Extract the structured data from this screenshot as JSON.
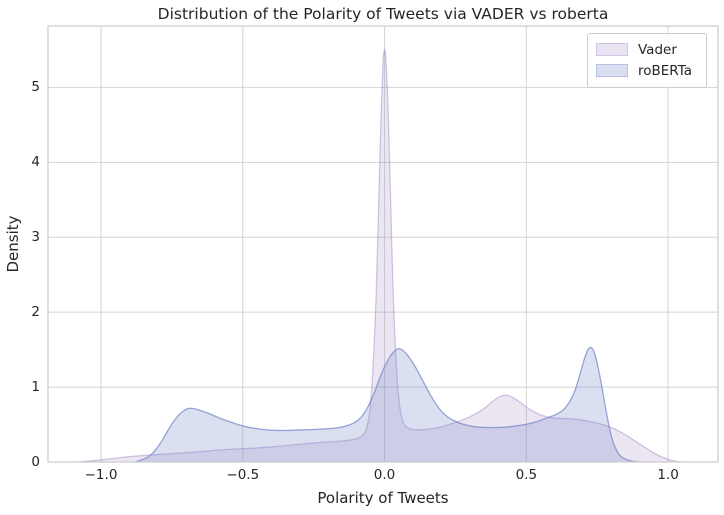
{
  "window": {
    "title": "Distribution of the Polarity of Tweets via VADER vs roberta"
  },
  "chart_data": {
    "type": "area",
    "subtype": "kde-density",
    "title": "Distribution of the Polarity of Tweets via VADER vs roberta",
    "xlabel": "Polarity of Tweets",
    "ylabel": "Density",
    "xlim": [
      -1.187,
      1.176
    ],
    "ylim": [
      0,
      5.82
    ],
    "grid": true,
    "x_ticks": {
      "values": [
        -1.0,
        -0.5,
        0.0,
        0.5,
        1.0
      ],
      "labels": [
        "−1.0",
        "−0.5",
        "0.0",
        "0.5",
        "1.0"
      ]
    },
    "y_ticks": {
      "values": [
        0,
        1,
        2,
        3,
        4,
        5
      ],
      "labels": [
        "0",
        "1",
        "2",
        "3",
        "4",
        "5"
      ]
    },
    "legend": {
      "position": "upper right",
      "entries": [
        {
          "label": "Vader",
          "swatch_fill": "#e9e3f2",
          "swatch_border": "#cfc4e2"
        },
        {
          "label": "roBERTa",
          "swatch_fill": "#d9def1",
          "swatch_border": "#b7c0e0"
        }
      ]
    },
    "series": [
      {
        "name": "Vader",
        "peak_summary": "spike ~5.5 at x=0.0, bump ~0.9 at x=0.43, tail to 0 near x=1.0",
        "fill_color": "rgba(158,130,195,0.20)",
        "edge_color": "rgba(158,130,195,0.45)",
        "points": [
          [
            -1.08,
            0
          ],
          [
            -1.02,
            0.02
          ],
          [
            -0.95,
            0.05
          ],
          [
            -0.88,
            0.08
          ],
          [
            -0.8,
            0.1
          ],
          [
            -0.72,
            0.12
          ],
          [
            -0.64,
            0.14
          ],
          [
            -0.56,
            0.17
          ],
          [
            -0.48,
            0.18
          ],
          [
            -0.4,
            0.2
          ],
          [
            -0.32,
            0.23
          ],
          [
            -0.24,
            0.26
          ],
          [
            -0.18,
            0.27
          ],
          [
            -0.12,
            0.29
          ],
          [
            -0.08,
            0.33
          ],
          [
            -0.06,
            0.45
          ],
          [
            -0.045,
            0.9
          ],
          [
            -0.03,
            2.1
          ],
          [
            -0.02,
            3.6
          ],
          [
            -0.01,
            4.9
          ],
          [
            -0.004,
            5.45
          ],
          [
            0.0,
            5.52
          ],
          [
            0.004,
            5.45
          ],
          [
            0.012,
            4.8
          ],
          [
            0.022,
            3.4
          ],
          [
            0.032,
            2.0
          ],
          [
            0.045,
            1.0
          ],
          [
            0.06,
            0.55
          ],
          [
            0.08,
            0.45
          ],
          [
            0.1,
            0.43
          ],
          [
            0.14,
            0.43
          ],
          [
            0.18,
            0.45
          ],
          [
            0.22,
            0.49
          ],
          [
            0.26,
            0.54
          ],
          [
            0.3,
            0.6
          ],
          [
            0.33,
            0.66
          ],
          [
            0.36,
            0.74
          ],
          [
            0.4,
            0.87
          ],
          [
            0.43,
            0.9
          ],
          [
            0.46,
            0.85
          ],
          [
            0.5,
            0.73
          ],
          [
            0.54,
            0.64
          ],
          [
            0.58,
            0.59
          ],
          [
            0.62,
            0.58
          ],
          [
            0.66,
            0.58
          ],
          [
            0.7,
            0.56
          ],
          [
            0.74,
            0.53
          ],
          [
            0.78,
            0.49
          ],
          [
            0.82,
            0.43
          ],
          [
            0.86,
            0.34
          ],
          [
            0.9,
            0.24
          ],
          [
            0.94,
            0.14
          ],
          [
            0.98,
            0.06
          ],
          [
            1.02,
            0.01
          ],
          [
            1.05,
            0
          ]
        ]
      },
      {
        "name": "roBERTa",
        "peak_summary": "peaks ~0.72 at x=-0.68, ~1.52 at x=0.05, ~1.55 at x=0.73",
        "fill_color": "rgba(110,130,200,0.25)",
        "edge_color": "rgba(110,130,200,0.70)",
        "points": [
          [
            -0.88,
            0
          ],
          [
            -0.85,
            0.03
          ],
          [
            -0.82,
            0.1
          ],
          [
            -0.79,
            0.25
          ],
          [
            -0.76,
            0.45
          ],
          [
            -0.73,
            0.62
          ],
          [
            -0.7,
            0.71
          ],
          [
            -0.68,
            0.72
          ],
          [
            -0.66,
            0.7
          ],
          [
            -0.62,
            0.65
          ],
          [
            -0.58,
            0.58
          ],
          [
            -0.54,
            0.53
          ],
          [
            -0.5,
            0.48
          ],
          [
            -0.46,
            0.45
          ],
          [
            -0.42,
            0.43
          ],
          [
            -0.38,
            0.42
          ],
          [
            -0.34,
            0.42
          ],
          [
            -0.3,
            0.43
          ],
          [
            -0.26,
            0.43
          ],
          [
            -0.22,
            0.44
          ],
          [
            -0.18,
            0.45
          ],
          [
            -0.14,
            0.47
          ],
          [
            -0.1,
            0.53
          ],
          [
            -0.07,
            0.65
          ],
          [
            -0.04,
            0.88
          ],
          [
            -0.01,
            1.2
          ],
          [
            0.02,
            1.42
          ],
          [
            0.04,
            1.5
          ],
          [
            0.05,
            1.52
          ],
          [
            0.07,
            1.48
          ],
          [
            0.1,
            1.33
          ],
          [
            0.13,
            1.12
          ],
          [
            0.16,
            0.9
          ],
          [
            0.19,
            0.72
          ],
          [
            0.22,
            0.6
          ],
          [
            0.26,
            0.52
          ],
          [
            0.3,
            0.48
          ],
          [
            0.34,
            0.46
          ],
          [
            0.38,
            0.46
          ],
          [
            0.42,
            0.46
          ],
          [
            0.46,
            0.48
          ],
          [
            0.5,
            0.5
          ],
          [
            0.54,
            0.54
          ],
          [
            0.58,
            0.6
          ],
          [
            0.61,
            0.64
          ],
          [
            0.64,
            0.72
          ],
          [
            0.67,
            0.92
          ],
          [
            0.69,
            1.18
          ],
          [
            0.71,
            1.45
          ],
          [
            0.725,
            1.55
          ],
          [
            0.74,
            1.48
          ],
          [
            0.76,
            1.15
          ],
          [
            0.78,
            0.7
          ],
          [
            0.8,
            0.32
          ],
          [
            0.82,
            0.13
          ],
          [
            0.84,
            0.05
          ],
          [
            0.87,
            0.01
          ],
          [
            0.9,
            0
          ]
        ]
      }
    ],
    "style": {
      "background": "#ffffff",
      "grid_color": "#d4d4d4",
      "spine_color": "#cacaca",
      "text_color": "#262626"
    }
  }
}
